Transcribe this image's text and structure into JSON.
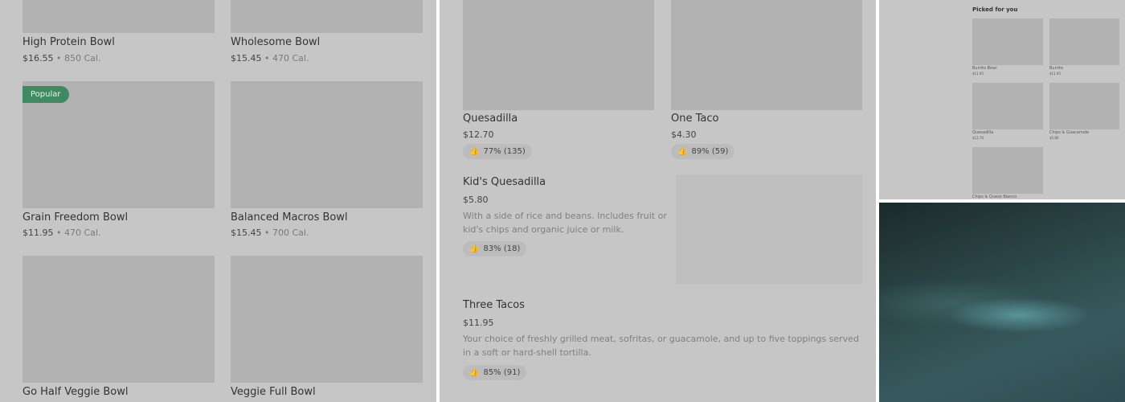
{
  "left_panel": {
    "items": [
      {
        "name": "High Protein Bowl",
        "price": "$16.55",
        "calories": "850 Cal."
      },
      {
        "name": "Wholesome Bowl",
        "price": "$15.45",
        "calories": "470 Cal."
      },
      {
        "name": "Grain Freedom Bowl",
        "price": "$11.95",
        "calories": "470 Cal.",
        "badge": "Popular"
      },
      {
        "name": "Balanced Macros Bowl",
        "price": "$15.45",
        "calories": "700 Cal."
      },
      {
        "name": "Go Half Veggie Bowl"
      },
      {
        "name": "Veggie Full Bowl"
      }
    ],
    "separator": "•",
    "badge_color": "#3f8a63"
  },
  "middle_panel": {
    "items": [
      {
        "name": "Quesadilla",
        "price": "$12.70",
        "rating": "77% (135)"
      },
      {
        "name": "One Taco",
        "price": "$4.30",
        "rating": "89% (59)"
      },
      {
        "name": "Kid's Quesadilla",
        "price": "$5.80",
        "description": "With a side of rice and beans. Includes fruit or kid's chips and organic juice or milk.",
        "rating": "83% (18)"
      },
      {
        "name": "Three Tacos",
        "price": "$11.95",
        "description": "Your choice of freshly grilled meat, sofritas, or guacamole, and up to five toppings served in a soft or hard-shell tortilla.",
        "rating": "85% (91)"
      }
    ],
    "rating_icon": "thumbs-up-icon"
  },
  "top_right_panel": {
    "title": "Picked for you",
    "items": [
      {
        "name": "Burrito Bowl",
        "price": "$11.95"
      },
      {
        "name": "Burrito",
        "price": "$11.95"
      },
      {
        "name": "Quesadilla",
        "price": "$12.70"
      },
      {
        "name": "Chips & Guacamole",
        "price": "$5.80"
      },
      {
        "name": "Chips & Queso Blanco"
      }
    ]
  }
}
